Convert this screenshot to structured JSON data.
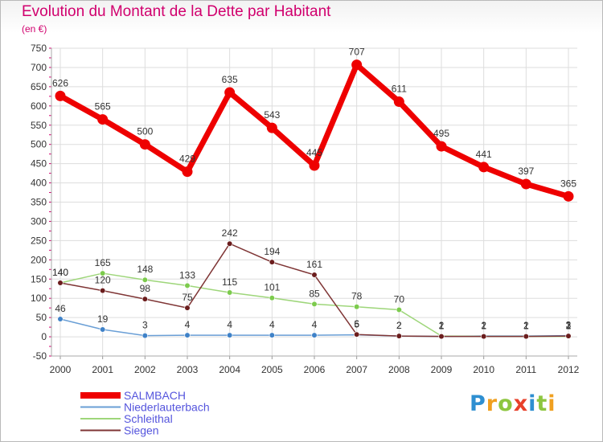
{
  "title": "Evolution du Montant de la Dette par Habitant",
  "unit": "(en €)",
  "logo": {
    "text": "Proxiti",
    "colors": [
      "#2e8fd1",
      "#f0a020",
      "#8dc63f",
      "#e8402a",
      "#2e8fd1",
      "#8dc63f",
      "#f0a020"
    ]
  },
  "chart_data": {
    "type": "line",
    "categories": [
      "2000",
      "2001",
      "2002",
      "2003",
      "2004",
      "2005",
      "2006",
      "2007",
      "2008",
      "2009",
      "2010",
      "2011",
      "2012"
    ],
    "ylim": [
      -50,
      750
    ],
    "yticks": [
      -50,
      0,
      50,
      100,
      150,
      200,
      250,
      300,
      350,
      400,
      450,
      500,
      550,
      600,
      650,
      700,
      750
    ],
    "grid": true,
    "legend_position": "bottom-left",
    "series": [
      {
        "name": "SALMBACH",
        "color": "#ee0000",
        "values": [
          626,
          565,
          500,
          429,
          635,
          543,
          445,
          707,
          611,
          495,
          441,
          397,
          365
        ],
        "labels": [
          "626",
          "565",
          "500",
          "429",
          "635",
          "543",
          "445",
          "707",
          "611",
          "495",
          "441",
          "397",
          "365"
        ]
      },
      {
        "name": "Niederlauterbach",
        "color": "#6a9fd6",
        "values": [
          46,
          19,
          3,
          4,
          4,
          4,
          4,
          5,
          2,
          1,
          2,
          2,
          3
        ],
        "labels": [
          "46",
          "19",
          "3",
          "4",
          "4",
          "4",
          "4",
          "5",
          "2",
          "1",
          "2",
          "2",
          "3"
        ]
      },
      {
        "name": "Schleithal",
        "color": "#9ed67a",
        "values": [
          140,
          165,
          148,
          133,
          115,
          101,
          85,
          78,
          70,
          2,
          1,
          1,
          1
        ],
        "labels": [
          "140",
          "165",
          "148",
          "133",
          "115",
          "101",
          "85",
          "78",
          "70",
          "2",
          "1",
          "1",
          "1"
        ]
      },
      {
        "name": "Siegen",
        "color": "#7f3535",
        "values": [
          140,
          120,
          98,
          75,
          242,
          194,
          161,
          6,
          2,
          1,
          1,
          1,
          2
        ],
        "labels": [
          "140",
          "120",
          "98",
          "75",
          "242",
          "194",
          "161",
          "6",
          "2",
          "1",
          "1",
          "1",
          "2"
        ]
      }
    ]
  }
}
